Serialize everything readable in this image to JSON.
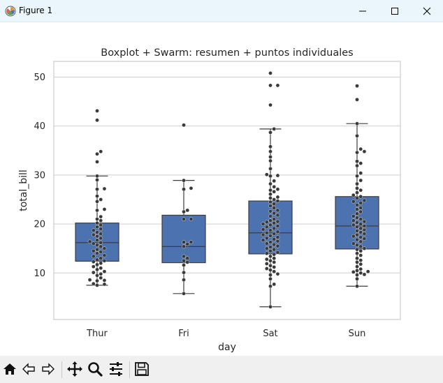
{
  "window": {
    "title": "Figure 1"
  },
  "toolbar": {
    "buttons": [
      "home-icon",
      "back-icon",
      "forward-icon",
      "pan-icon",
      "zoom-icon",
      "configure-subplots-icon",
      "save-icon"
    ]
  },
  "colors": {
    "box_fill": "#4c72b0",
    "point": "#3a3a3a",
    "grid": "#cfcfcf",
    "axes_edge": "#cccccc"
  },
  "chart_data": {
    "type": "box",
    "title": "Boxplot + Swarm: resumen + puntos individuales",
    "xlabel": "day",
    "ylabel": "total_bill",
    "categories": [
      "Thur",
      "Fri",
      "Sat",
      "Sun"
    ],
    "ylim": [
      0.5,
      53.2
    ],
    "yticks": [
      10,
      20,
      30,
      40,
      50
    ],
    "grid": true,
    "boxes": [
      {
        "category": "Thur",
        "whisker_low": 7.5,
        "q1": 12.4,
        "median": 16.2,
        "q3": 20.2,
        "whisker_high": 29.8
      },
      {
        "category": "Fri",
        "whisker_low": 5.8,
        "q1": 12.1,
        "median": 15.4,
        "q3": 21.8,
        "whisker_high": 28.9
      },
      {
        "category": "Sat",
        "whisker_low": 3.1,
        "q1": 13.9,
        "median": 18.2,
        "q3": 24.7,
        "whisker_high": 39.4
      },
      {
        "category": "Sun",
        "whisker_low": 7.3,
        "q1": 14.9,
        "median": 19.6,
        "q3": 25.6,
        "whisker_high": 40.5
      }
    ],
    "points": {
      "Thur": [
        43.1,
        41.2,
        34.8,
        34.3,
        32.7,
        29.8,
        29.0,
        27.2,
        27.1,
        25.7,
        25.0,
        24.6,
        23.0,
        22.8,
        21.5,
        21.0,
        20.7,
        20.2,
        19.8,
        19.4,
        19.0,
        18.7,
        18.3,
        18.0,
        17.8,
        17.5,
        17.1,
        16.7,
        16.4,
        16.2,
        16.0,
        15.7,
        15.4,
        15.0,
        14.8,
        14.5,
        14.3,
        14.0,
        13.6,
        13.4,
        13.0,
        12.7,
        12.5,
        12.3,
        12.0,
        11.7,
        11.3,
        11.0,
        10.7,
        10.3,
        10.1,
        9.8,
        9.5,
        9.0,
        8.6,
        8.5,
        8.4,
        7.8,
        7.7,
        7.5
      ],
      "Fri": [
        40.2,
        28.9,
        27.3,
        27.1,
        22.8,
        22.5,
        21.0,
        21.0,
        16.3,
        16.3,
        15.9,
        15.4,
        13.4,
        13.0,
        12.5,
        12.2,
        11.6,
        10.1,
        8.6,
        5.8
      ],
      "Sat": [
        50.8,
        48.3,
        48.3,
        44.3,
        39.4,
        38.7,
        35.8,
        34.8,
        33.7,
        32.9,
        31.3,
        30.1,
        29.9,
        29.8,
        28.8,
        28.2,
        27.6,
        27.1,
        26.9,
        26.6,
        26.1,
        25.5,
        25.3,
        25.0,
        24.7,
        24.5,
        24.1,
        23.7,
        23.3,
        22.8,
        22.6,
        22.2,
        21.8,
        21.6,
        21.0,
        20.7,
        20.5,
        20.4,
        20.2,
        20.0,
        19.8,
        19.6,
        19.4,
        19.1,
        18.9,
        18.7,
        18.4,
        18.2,
        18.0,
        17.8,
        17.6,
        17.3,
        17.1,
        16.9,
        16.7,
        16.5,
        16.3,
        16.0,
        15.8,
        15.5,
        15.3,
        15.0,
        14.8,
        14.5,
        14.2,
        14.0,
        13.8,
        13.4,
        13.0,
        12.8,
        12.5,
        12.2,
        11.9,
        11.5,
        11.2,
        10.9,
        10.6,
        10.3,
        9.8,
        9.6,
        8.8,
        7.7,
        7.3,
        3.1
      ],
      "Sun": [
        48.2,
        45.4,
        40.5,
        38.0,
        35.3,
        34.8,
        34.6,
        32.8,
        32.4,
        31.9,
        30.4,
        29.8,
        28.9,
        28.2,
        27.3,
        26.9,
        26.4,
        25.9,
        25.6,
        25.3,
        24.8,
        24.6,
        24.3,
        23.9,
        23.3,
        23.0,
        22.5,
        22.1,
        21.6,
        21.3,
        21.0,
        20.7,
        20.5,
        20.3,
        20.0,
        19.8,
        19.6,
        19.4,
        19.1,
        18.8,
        18.6,
        18.3,
        18.0,
        17.8,
        17.5,
        17.3,
        17.0,
        16.8,
        16.4,
        16.0,
        15.7,
        15.4,
        15.0,
        14.8,
        14.5,
        14.0,
        13.6,
        13.0,
        12.6,
        12.2,
        11.8,
        11.3,
        10.8,
        10.5,
        10.3,
        10.2,
        10.0,
        9.7,
        9.6,
        8.8,
        7.3
      ]
    }
  }
}
